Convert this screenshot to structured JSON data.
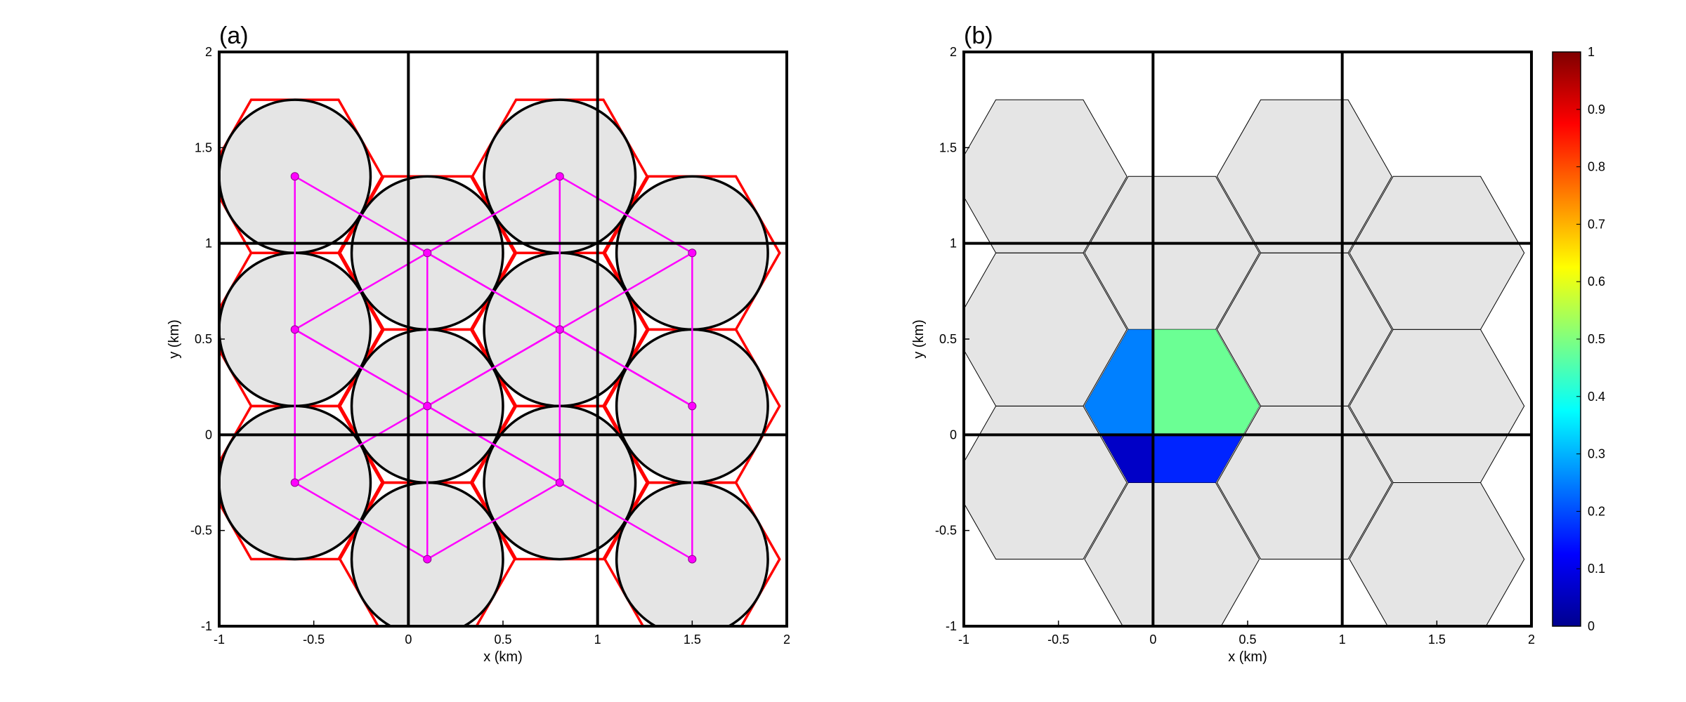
{
  "colors": {
    "cell_fill": "#e5e5e5",
    "hex_outline_a": "#ff0000",
    "circle_outline": "#000000",
    "triangle_line": "#ff00ff",
    "grid_line": "#000000"
  },
  "chart_data": [
    {
      "type": "diagram-plot",
      "panel_label": "(a)",
      "xlabel": "x (km)",
      "ylabel": "y (km)",
      "xlim": [
        -1,
        2
      ],
      "ylim": [
        -1,
        2
      ],
      "xticks": [
        "-1",
        "-0.5",
        "0",
        "0.5",
        "1",
        "1.5",
        "2"
      ],
      "yticks": [
        "-1",
        "-0.5",
        "0",
        "0.5",
        "1",
        "1.5",
        "2"
      ],
      "grid_lines_x": [
        0,
        1
      ],
      "grid_lines_y": [
        0,
        1
      ],
      "hex_radius": 0.4618,
      "cell_centers": [
        [
          -0.6,
          1.35
        ],
        [
          0.8,
          1.35
        ],
        [
          0.1,
          0.95
        ],
        [
          1.5,
          0.95
        ],
        [
          -0.6,
          0.55
        ],
        [
          0.8,
          0.55
        ],
        [
          0.1,
          0.15
        ],
        [
          1.5,
          0.15
        ],
        [
          -0.6,
          -0.25
        ],
        [
          0.8,
          -0.25
        ],
        [
          0.1,
          -0.65
        ],
        [
          1.5,
          -0.65
        ]
      ],
      "circle_radius": 0.4,
      "sensor_points": [
        [
          -0.6,
          1.35
        ],
        [
          0.8,
          1.35
        ],
        [
          0.1,
          0.95
        ],
        [
          1.5,
          0.95
        ],
        [
          -0.6,
          0.55
        ],
        [
          0.8,
          0.55
        ],
        [
          0.1,
          0.15
        ],
        [
          1.5,
          0.15
        ],
        [
          -0.6,
          -0.25
        ],
        [
          0.8,
          -0.25
        ],
        [
          0.1,
          -0.65
        ],
        [
          1.5,
          -0.65
        ]
      ],
      "triangle_edges": [
        [
          [
            -0.6,
            1.35
          ],
          [
            -0.6,
            -0.25
          ]
        ],
        [
          [
            -0.6,
            1.35
          ],
          [
            0.8,
            0.55
          ]
        ],
        [
          [
            0.8,
            1.35
          ],
          [
            -0.6,
            0.55
          ]
        ],
        [
          [
            0.8,
            1.35
          ],
          [
            1.5,
            0.95
          ]
        ],
        [
          [
            0.8,
            1.35
          ],
          [
            0.8,
            -0.25
          ]
        ],
        [
          [
            0.1,
            0.95
          ],
          [
            0.1,
            -0.65
          ]
        ],
        [
          [
            0.1,
            0.95
          ],
          [
            1.5,
            0.15
          ]
        ],
        [
          [
            1.5,
            0.95
          ],
          [
            0.1,
            0.15
          ]
        ],
        [
          [
            1.5,
            0.95
          ],
          [
            1.5,
            -0.65
          ]
        ],
        [
          [
            -0.6,
            0.55
          ],
          [
            0.8,
            -0.25
          ]
        ],
        [
          [
            0.8,
            0.55
          ],
          [
            -0.6,
            -0.25
          ]
        ],
        [
          [
            0.8,
            0.55
          ],
          [
            1.5,
            0.15
          ]
        ],
        [
          [
            0.1,
            0.15
          ],
          [
            0.8,
            -0.25
          ]
        ],
        [
          [
            0.1,
            0.15
          ],
          [
            -0.6,
            0.55
          ]
        ],
        [
          [
            -0.6,
            -0.25
          ],
          [
            0.1,
            -0.65
          ]
        ],
        [
          [
            0.8,
            -0.25
          ],
          [
            0.1,
            -0.65
          ]
        ],
        [
          [
            0.8,
            -0.25
          ],
          [
            1.5,
            -0.65
          ]
        ],
        [
          [
            1.5,
            0.15
          ],
          [
            0.8,
            0.55
          ]
        ]
      ]
    },
    {
      "type": "heatmap",
      "panel_label": "(b)",
      "xlabel": "x (km)",
      "ylabel": "y (km)",
      "xlim": [
        -1,
        2
      ],
      "ylim": [
        -1,
        2
      ],
      "xticks": [
        "-1",
        "-0.5",
        "0",
        "0.5",
        "1",
        "1.5",
        "2"
      ],
      "yticks": [
        "-1",
        "-0.5",
        "0",
        "0.5",
        "1",
        "1.5",
        "2"
      ],
      "grid_lines_x": [
        0,
        1
      ],
      "grid_lines_y": [
        0,
        1
      ],
      "hex_radius": 0.4618,
      "cell_centers": [
        [
          -0.6,
          1.35
        ],
        [
          0.8,
          1.35
        ],
        [
          0.1,
          0.95
        ],
        [
          1.5,
          0.95
        ],
        [
          -0.6,
          0.55
        ],
        [
          0.8,
          0.55
        ],
        [
          0.1,
          0.15
        ],
        [
          1.5,
          0.15
        ],
        [
          -0.6,
          -0.25
        ],
        [
          0.8,
          -0.25
        ],
        [
          0.1,
          -0.65
        ],
        [
          1.5,
          -0.65
        ]
      ],
      "colored_cell_center": [
        0.1,
        0.15
      ],
      "colored_cell_quadrants": [
        {
          "quadrant": "x<0, y>0",
          "value": 0.25
        },
        {
          "quadrant": "x>0, y>0",
          "value": 0.48
        },
        {
          "quadrant": "x<0, y<0",
          "value": 0.07
        },
        {
          "quadrant": "x>0, y<0",
          "value": 0.16
        }
      ],
      "colorbar": {
        "min": 0,
        "max": 1,
        "ticks": [
          "0",
          "0.1",
          "0.2",
          "0.3",
          "0.4",
          "0.5",
          "0.6",
          "0.7",
          "0.8",
          "0.9",
          "1"
        ],
        "colormap": "jet"
      }
    }
  ]
}
